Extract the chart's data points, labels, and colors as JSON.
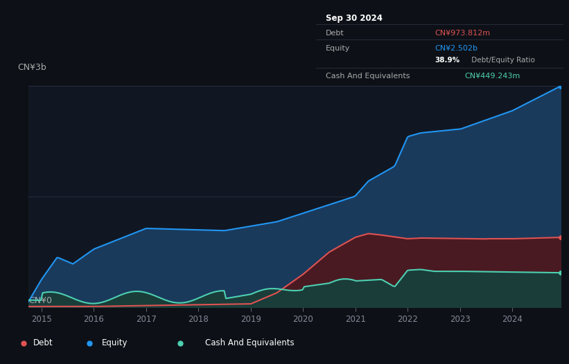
{
  "bg_color": "#0d1117",
  "plot_bg_color": "#111722",
  "tooltip_title": "Sep 30 2024",
  "tooltip_debt_label": "Debt",
  "tooltip_debt_value": "CN¥973.812m",
  "tooltip_equity_label": "Equity",
  "tooltip_equity_value": "CN¥2.502b",
  "tooltip_ratio": "38.9%",
  "tooltip_ratio_label": " Debt/Equity Ratio",
  "tooltip_cash_label": "Cash And Equivalents",
  "tooltip_cash_value": "CN¥449.243m",
  "y_label_top": "CN¥3b",
  "y_label_bottom": "CN¥0",
  "x_ticks": [
    2015,
    2016,
    2017,
    2018,
    2019,
    2020,
    2021,
    2022,
    2023,
    2024
  ],
  "equity_color": "#2196f3",
  "debt_color": "#e05252",
  "cash_color": "#4dd0b1",
  "equity_fill": "#1a3a5c",
  "debt_fill": "#4a1a22",
  "cash_fill": "#1a3d3a",
  "grid_color": "#2a3040",
  "legend_border": "#3a4050",
  "tooltip_bg": "#0a0d14",
  "tooltip_border": "#2a3040",
  "ylim": [
    0,
    3.0
  ],
  "xlim": [
    2014.75,
    2024.92
  ]
}
